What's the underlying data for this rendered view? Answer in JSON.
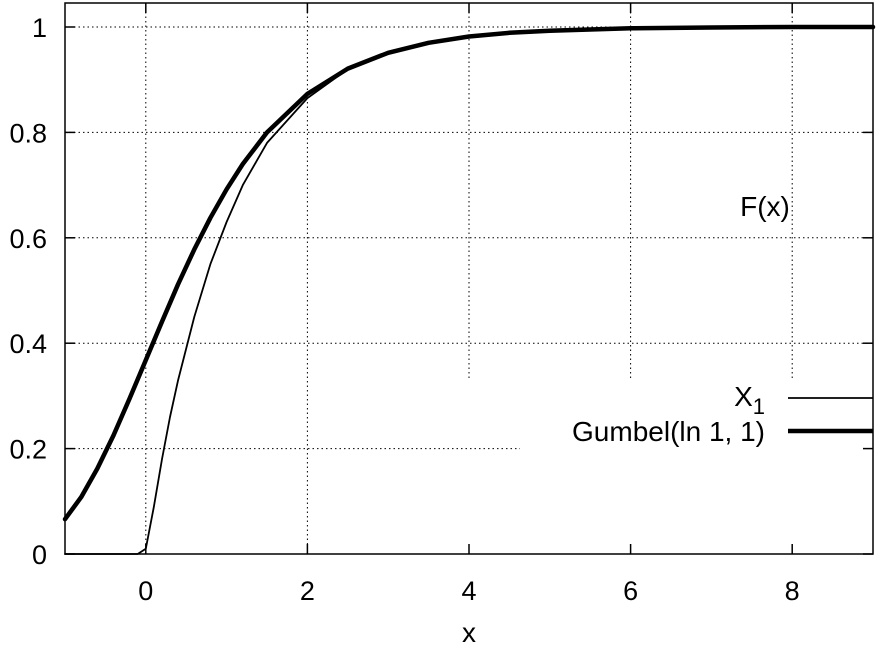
{
  "chart_data": {
    "type": "line",
    "xlabel": "x",
    "ylabel": "",
    "xlim": [
      -1,
      9
    ],
    "ylim": [
      0,
      1
    ],
    "xticks": [
      0,
      2,
      4,
      6,
      8
    ],
    "yticks": [
      0,
      0.2,
      0.4,
      0.6,
      0.8,
      1
    ],
    "xtick_labels": [
      "0",
      "2",
      "4",
      "6",
      "8"
    ],
    "ytick_labels": [
      "0",
      "0.2",
      "0.4",
      "0.6",
      "0.8",
      "1"
    ],
    "grid": true,
    "legend_position": "right",
    "annotation": "F(x)",
    "series": [
      {
        "name": "X",
        "name_subscript": "1",
        "style": "thin",
        "x": [
          -1,
          -0.1,
          0,
          0.1,
          0.2,
          0.3,
          0.4,
          0.5,
          0.6,
          0.8,
          1,
          1.2,
          1.5,
          2,
          2.5,
          3,
          3.5,
          4,
          4.5,
          5,
          6,
          7,
          8,
          9
        ],
        "y": [
          0,
          0,
          0.01,
          0.09,
          0.18,
          0.26,
          0.33,
          0.39,
          0.45,
          0.55,
          0.63,
          0.7,
          0.78,
          0.865,
          0.92,
          0.951,
          0.97,
          0.982,
          0.989,
          0.993,
          0.9975,
          0.999,
          1,
          1
        ]
      },
      {
        "name": "Gumbel(ln 1, 1)",
        "style": "thick",
        "x": [
          -1,
          -0.8,
          -0.6,
          -0.4,
          -0.2,
          0,
          0.2,
          0.4,
          0.6,
          0.8,
          1,
          1.2,
          1.5,
          2,
          2.5,
          3,
          3.5,
          4,
          4.5,
          5,
          6,
          7,
          8,
          9
        ],
        "y": [
          0.066,
          0.108,
          0.162,
          0.225,
          0.295,
          0.368,
          0.441,
          0.512,
          0.578,
          0.638,
          0.692,
          0.74,
          0.8,
          0.873,
          0.921,
          0.951,
          0.97,
          0.982,
          0.989,
          0.993,
          0.9975,
          0.999,
          1,
          1
        ]
      }
    ]
  }
}
